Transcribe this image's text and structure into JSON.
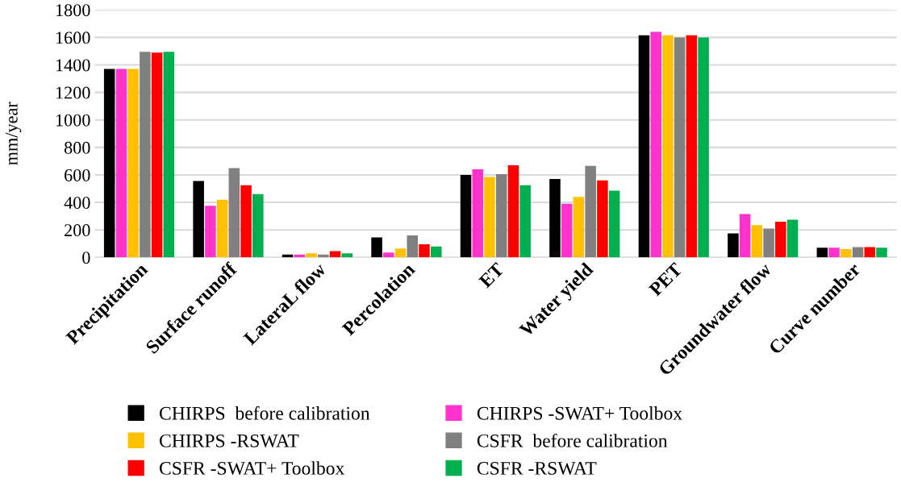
{
  "chart_data": {
    "type": "bar",
    "ylabel": "mm/year",
    "categories": [
      "Precipitation",
      "Surface runoff",
      "LateraL flow",
      "Percolation",
      "ET",
      "Water yield",
      "PET",
      "Groundwater flow",
      "Curve number"
    ],
    "series": [
      {
        "name": "CHIRPS  before calibration",
        "color": "#000000",
        "values": [
          1370,
          555,
          20,
          145,
          600,
          570,
          1615,
          175,
          70
        ]
      },
      {
        "name": "CHIRPS -SWAT+ Toolbox",
        "color": "#ff33cc",
        "values": [
          1370,
          375,
          20,
          35,
          640,
          390,
          1640,
          315,
          70
        ]
      },
      {
        "name": "CHIRPS -RSWAT",
        "color": "#ffc000",
        "values": [
          1370,
          420,
          30,
          65,
          585,
          440,
          1615,
          235,
          60
        ]
      },
      {
        "name": "CSFR  before calibration",
        "color": "#808080",
        "values": [
          1495,
          650,
          20,
          160,
          605,
          665,
          1600,
          210,
          75
        ]
      },
      {
        "name": "CSFR -SWAT+ Toolbox",
        "color": "#ff0000",
        "values": [
          1490,
          525,
          45,
          95,
          670,
          560,
          1615,
          260,
          75
        ]
      },
      {
        "name": "CSFR -RSWAT",
        "color": "#00b050",
        "values": [
          1495,
          460,
          30,
          80,
          525,
          485,
          1600,
          275,
          70
        ]
      }
    ],
    "ylim": [
      0,
      1800
    ],
    "yticks": [
      0,
      200,
      400,
      600,
      800,
      1000,
      1200,
      1400,
      1600,
      1800
    ],
    "grid": "y",
    "legend": "bottom"
  }
}
